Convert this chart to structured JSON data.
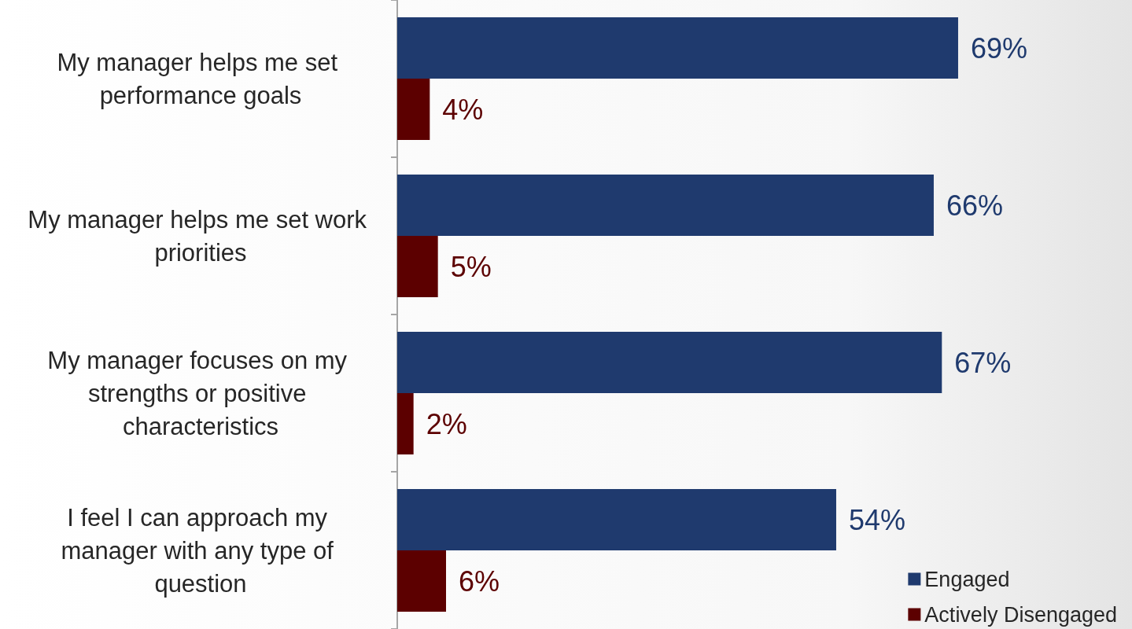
{
  "chart_data": {
    "type": "bar",
    "orientation": "horizontal",
    "categories": [
      "My manager helps me set performance goals",
      "My manager helps me set work priorities",
      "My manager focuses on my strengths or positive characteristics",
      "I feel I can approach my manager with any type of question"
    ],
    "series": [
      {
        "name": "Engaged",
        "color": "#1f3a6e",
        "values": [
          69,
          66,
          67,
          54
        ],
        "value_labels": [
          "69%",
          "66%",
          "67%",
          "54%"
        ]
      },
      {
        "name": "Actively Disengaged",
        "color": "#5c0000",
        "values": [
          4,
          5,
          2,
          6
        ],
        "value_labels": [
          "4%",
          "5%",
          "2%",
          "6%"
        ]
      }
    ],
    "legend": "bottom right"
  }
}
